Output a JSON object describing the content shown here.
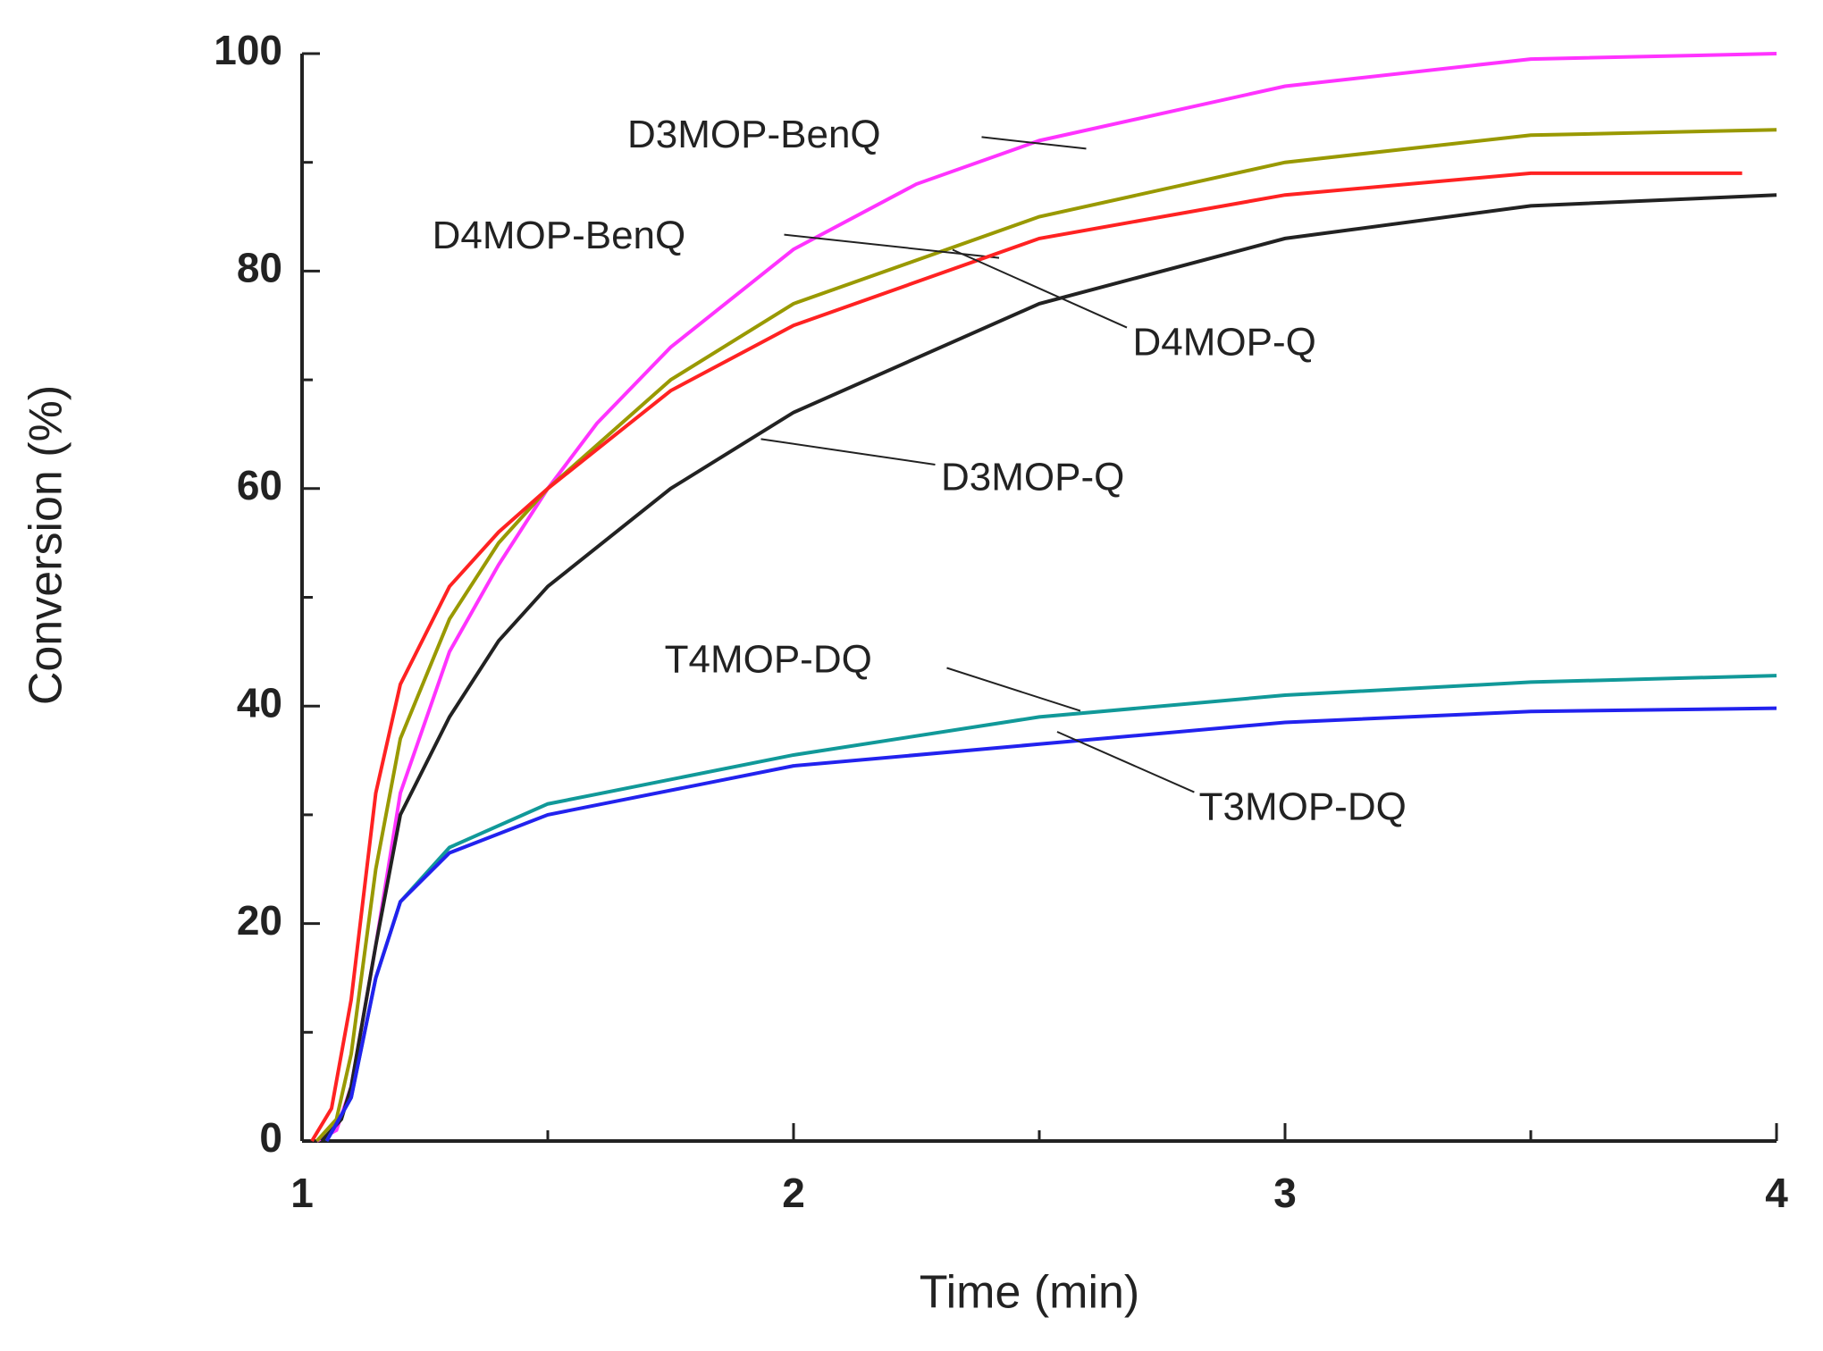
{
  "chart_data": {
    "type": "line",
    "x_label": "Time (min)",
    "y_label": "Conversion (%)",
    "xlim": [
      1,
      4
    ],
    "xticks": [
      1,
      2,
      3,
      4
    ],
    "ylim": [
      0,
      100
    ],
    "yticks": [
      0,
      20,
      40,
      60,
      80,
      100
    ],
    "series": [
      {
        "name": "D3MOP-BenQ",
        "color": "#ff33ff",
        "x": [
          1.03,
          1.07,
          1.1,
          1.15,
          1.2,
          1.3,
          1.4,
          1.5,
          1.6,
          1.75,
          2,
          2.25,
          2.5,
          3,
          3.5,
          4
        ],
        "values": [
          0,
          1,
          5,
          18,
          32,
          45,
          53,
          60,
          66,
          73,
          82,
          88,
          92,
          97,
          99.5,
          100
        ]
      },
      {
        "name": "D4MOP-BenQ",
        "color": "#999900",
        "x": [
          1.03,
          1.07,
          1.1,
          1.15,
          1.2,
          1.3,
          1.4,
          1.5,
          1.75,
          2,
          2.5,
          3,
          3.5,
          4
        ],
        "values": [
          0,
          2,
          8,
          25,
          37,
          48,
          55,
          60,
          70,
          77,
          85,
          90,
          92.5,
          93
        ]
      },
      {
        "name": "D4MOP-Q",
        "color": "#ff2222",
        "x": [
          1.02,
          1.06,
          1.1,
          1.15,
          1.2,
          1.3,
          1.4,
          1.5,
          1.75,
          2,
          2.5,
          3,
          3.5,
          3.93
        ],
        "values": [
          0,
          3,
          13,
          32,
          42,
          51,
          56,
          60,
          69,
          75,
          83,
          87,
          89,
          89
        ]
      },
      {
        "name": "D3MOP-Q",
        "color": "#222222",
        "x": [
          1.04,
          1.08,
          1.1,
          1.15,
          1.2,
          1.3,
          1.4,
          1.5,
          1.75,
          2,
          2.5,
          3,
          3.5,
          4
        ],
        "values": [
          0,
          2,
          5,
          18,
          30,
          39,
          46,
          51,
          60,
          67,
          77,
          83,
          86,
          87
        ]
      },
      {
        "name": "T4MOP-DQ",
        "color": "#119999",
        "x": [
          1.05,
          1.1,
          1.15,
          1.2,
          1.3,
          1.5,
          2,
          2.5,
          3,
          3.5,
          4
        ],
        "values": [
          0,
          4,
          15,
          22,
          27,
          31,
          35.5,
          39,
          41,
          42.2,
          42.8
        ]
      },
      {
        "name": "T3MOP-DQ",
        "color": "#2222ee",
        "x": [
          1.05,
          1.1,
          1.15,
          1.2,
          1.3,
          1.5,
          2,
          2.5,
          3,
          3.5,
          4
        ],
        "values": [
          0,
          4,
          15,
          22,
          26.5,
          30,
          34.5,
          36.5,
          38.5,
          39.5,
          39.8
        ]
      }
    ]
  }
}
